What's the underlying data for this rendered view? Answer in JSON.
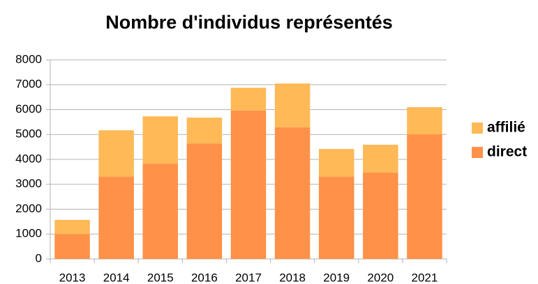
{
  "chart_data": {
    "type": "stacked_bar",
    "title": "Nombre d'individus représentés",
    "categories": [
      "2013",
      "2014",
      "2015",
      "2016",
      "2017",
      "2018",
      "2019",
      "2020",
      "2021"
    ],
    "series": [
      {
        "name": "direct",
        "color": "#ff9148",
        "values": [
          1000,
          3300,
          3830,
          4640,
          5960,
          5290,
          3300,
          3470,
          5010
        ]
      },
      {
        "name": "affilié",
        "color": "#ffb957",
        "values": [
          570,
          1870,
          1900,
          1040,
          920,
          1760,
          1120,
          1120,
          1090
        ]
      }
    ],
    "ylim": [
      0,
      8000
    ],
    "yticks": [
      0,
      1000,
      2000,
      3000,
      4000,
      5000,
      6000,
      7000,
      8000
    ],
    "grid": true,
    "legend": "right"
  }
}
